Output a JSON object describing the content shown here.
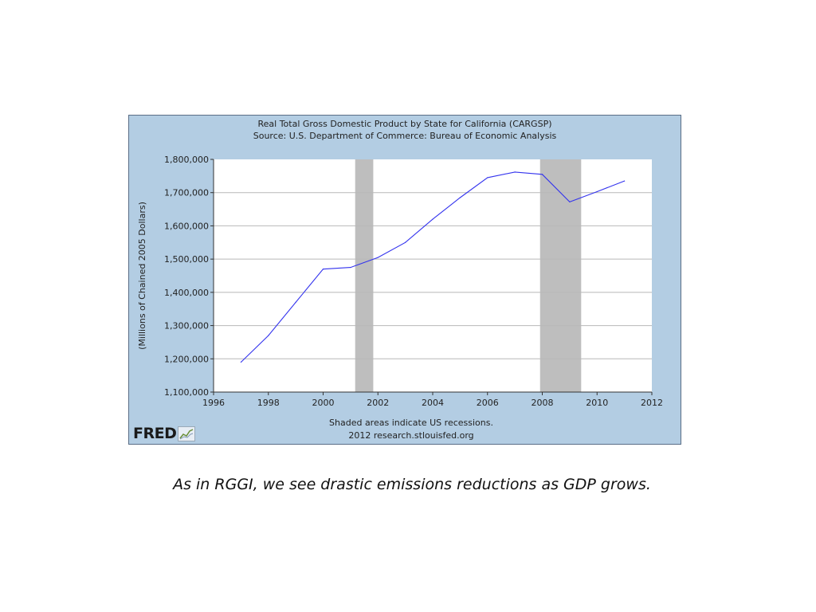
{
  "slide": {
    "caption": "As in RGGI, we see drastic emissions reductions as GDP grows."
  },
  "chart": {
    "title_line1": "Real Total Gross Domestic Product by State for California (CARGSP)",
    "title_line2": "Source: U.S. Department of Commerce: Bureau of Economic Analysis",
    "footnote_line1": "Shaded areas indicate US recessions.",
    "footnote_line2": "2012 research.stlouisfed.org",
    "logo_text": "FRED",
    "logo_icon": "chart-line-icon"
  },
  "colors": {
    "frame_bg": "#b3cde3",
    "plot_bg": "#ffffff",
    "line": "#3333ee",
    "recession": "#bebebe",
    "grid": "#b8b8b8"
  },
  "chart_data": {
    "type": "line",
    "title": "Real Total Gross Domestic Product by State for California (CARGSP)",
    "subtitle": "Source: U.S. Department of Commerce: Bureau of Economic Analysis",
    "xlabel": "",
    "ylabel": "(Millions of Chained 2005 Dollars)",
    "xlim": [
      1996,
      2012
    ],
    "ylim": [
      1100000,
      1800000
    ],
    "x_ticks": [
      1996,
      1998,
      2000,
      2002,
      2004,
      2006,
      2008,
      2010,
      2012
    ],
    "y_ticks": [
      {
        "value": 1100000,
        "label": "1,100,000"
      },
      {
        "value": 1200000,
        "label": "1,200,000"
      },
      {
        "value": 1300000,
        "label": "1,300,000"
      },
      {
        "value": 1400000,
        "label": "1,400,000"
      },
      {
        "value": 1500000,
        "label": "1,500,000"
      },
      {
        "value": 1600000,
        "label": "1,600,000"
      },
      {
        "value": 1700000,
        "label": "1,700,000"
      },
      {
        "value": 1800000,
        "label": "1,800,000"
      }
    ],
    "grid": true,
    "recessions": [
      {
        "start": 2001.17,
        "end": 2001.83
      },
      {
        "start": 2007.92,
        "end": 2009.42
      }
    ],
    "series": [
      {
        "x": [
          1997,
          1998,
          1999,
          2000,
          2001,
          2002,
          2003,
          2004,
          2005,
          2006,
          2007,
          2008,
          2009,
          2010,
          2011
        ],
        "values": [
          1190000,
          1270000,
          1370000,
          1470000,
          1475000,
          1505000,
          1550000,
          1620000,
          1685000,
          1745000,
          1762000,
          1755000,
          1672000,
          1703000,
          1735000
        ]
      }
    ],
    "footnote": "Shaded areas indicate US recessions."
  }
}
